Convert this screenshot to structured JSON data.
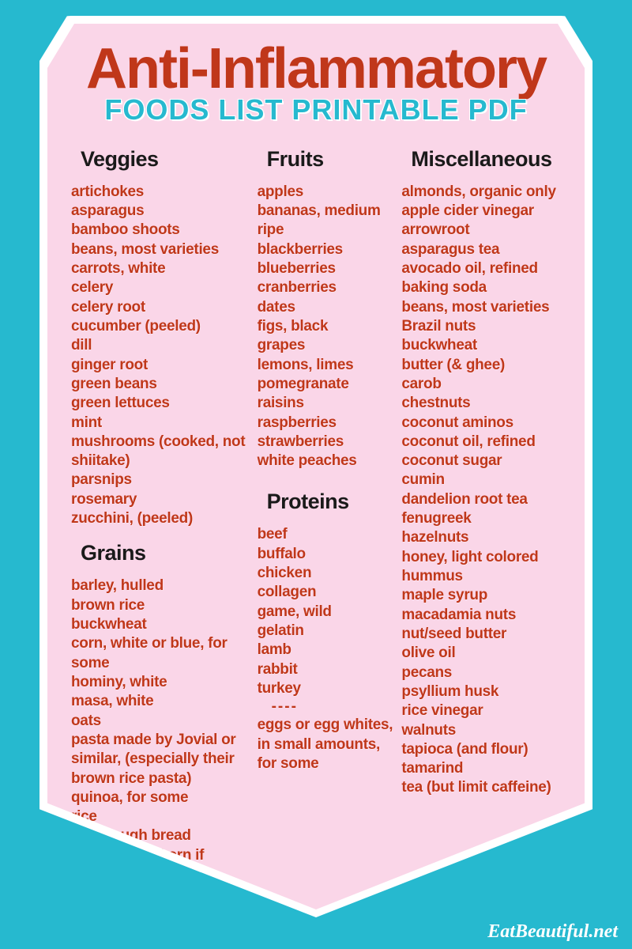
{
  "title_main": "Anti-Inflammatory",
  "title_sub": "FOODS LIST PRINTABLE PDF",
  "site_credit": "EatBeautiful.net",
  "colors": {
    "background": "#26b9cf",
    "shield_border": "#ffffff",
    "shield_fill": "#fad6e8",
    "title_main": "#c0371a",
    "title_sub": "#26b9cf",
    "heading": "#1a1a1a",
    "item": "#c0371a",
    "credit": "#ffffff"
  },
  "typography": {
    "title_main_size": 72,
    "title_sub_size": 36,
    "heading_size": 27,
    "item_size": 19,
    "credit_size": 24
  },
  "sections": {
    "veggies": {
      "heading": "Veggies",
      "items": [
        "artichokes",
        "asparagus",
        "bamboo shoots",
        "beans, most varieties",
        "carrots, white",
        "celery",
        "celery root",
        "cucumber (peeled)",
        "dill",
        "ginger root",
        "green beans",
        "green lettuces",
        "mint",
        "mushrooms (cooked, not shiitake)",
        "parsnips",
        "rosemary",
        "zucchini, (peeled)"
      ]
    },
    "grains": {
      "heading": "Grains",
      "items": [
        "barley, hulled",
        "brown rice",
        "buckwheat",
        "corn, white or blue, for some",
        "hominy, white",
        "masa, white",
        "oats",
        "pasta made by Jovial or similar, (especially their brown rice pasta)",
        "quinoa, for some",
        "rice",
        "sourdough bread",
        "spelt and einkorn if tolerated"
      ]
    },
    "fruits": {
      "heading": "Fruits",
      "items": [
        "apples",
        "bananas, medium ripe",
        "blackberries",
        "blueberries",
        "cranberries",
        "dates",
        "figs, black",
        "grapes",
        "lemons, limes",
        "pomegranate",
        "raisins",
        "raspberries",
        "strawberries",
        "white peaches"
      ]
    },
    "proteins": {
      "heading": "Proteins",
      "items_a": [
        "beef",
        "buffalo",
        "chicken",
        "collagen",
        "game, wild",
        "gelatin",
        "lamb",
        "rabbit",
        "turkey"
      ],
      "divider": "----",
      "items_b": [
        "eggs or egg whites, in small amounts, for some"
      ]
    },
    "misc": {
      "heading": "Miscellaneous",
      "items": [
        "almonds, organic only",
        "apple cider vinegar",
        "arrowroot",
        "asparagus tea",
        "avocado oil, refined",
        "baking soda",
        "beans, most varieties",
        "Brazil nuts",
        "buckwheat",
        "butter (& ghee)",
        "carob",
        "chestnuts",
        "coconut aminos",
        "coconut oil, refined",
        "coconut sugar",
        "cumin",
        "dandelion root tea",
        "fenugreek",
        "hazelnuts",
        "honey, light colored",
        "hummus",
        "maple syrup",
        "macadamia nuts",
        "nut/seed butter",
        "olive oil",
        "pecans",
        "psyllium husk",
        "rice vinegar",
        "walnuts",
        "tapioca (and flour)",
        "tamarind",
        "tea (but limit caffeine)"
      ]
    }
  }
}
